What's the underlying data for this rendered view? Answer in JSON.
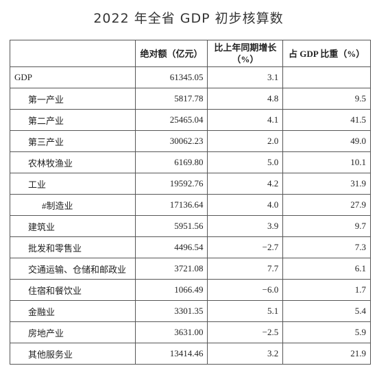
{
  "title": "2022 年全省 GDP 初步核算数",
  "header": [
    [
      "绝对额（亿元）"
    ],
    [
      "比上年同期增长",
      "（%）"
    ],
    [
      "占 GDP 比重（%）"
    ]
  ],
  "rows": [
    [
      "GDP",
      "61345.05",
      "3.1"
    ],
    [
      "第一产业",
      "5817.78",
      "4.8",
      "9.5"
    ],
    [
      "第二产业",
      "25465.04",
      "4.1",
      "41.5"
    ],
    [
      "第三产业",
      "30062.23",
      "2.0",
      "49.0"
    ],
    [
      "农林牧渔业",
      "6169.80",
      "5.0",
      "10.1"
    ],
    [
      "工业",
      "19592.76",
      "4.2",
      "31.9"
    ],
    [
      "#制造业",
      "17136.64",
      "4.0",
      "27.9"
    ],
    [
      "建筑业",
      "5951.56",
      "3.9",
      "9.7"
    ],
    [
      "批发和零售业",
      "4496.54",
      "−2.7",
      "7.3"
    ],
    [
      "交通运输、仓储和邮政业",
      "3721.08",
      "7.7",
      "6.1"
    ],
    [
      "住宿和餐饮业",
      "1066.49",
      "−6.0",
      "1.7"
    ],
    [
      "金融业",
      "3301.35",
      "5.1",
      "5.4"
    ],
    [
      "房地产业",
      "3631.00",
      "−2.5",
      "5.9"
    ],
    [
      "其他服务业",
      "13414.46",
      "3.2",
      "21.9"
    ]
  ]
}
